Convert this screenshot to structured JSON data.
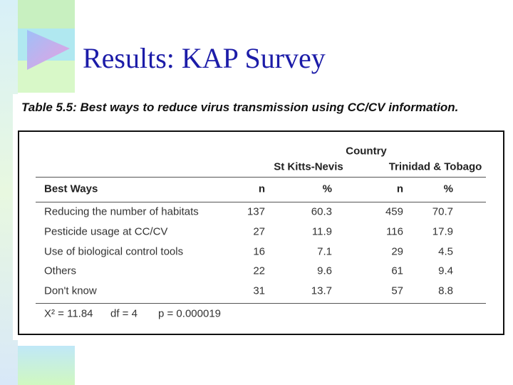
{
  "title": "Results: KAP Survey",
  "caption": "Table 5.5: Best ways to reduce virus transmission using CC/CV information.",
  "table": {
    "group_header": "Country",
    "groups": [
      "St Kitts-Nevis",
      "Trinidad & Tobago"
    ],
    "columns": [
      "Best Ways",
      "n",
      "%",
      "n",
      "%"
    ],
    "rows": [
      [
        "Reducing the number of habitats",
        137,
        60.3,
        459,
        70.7
      ],
      [
        "Pesticide usage at CC/CV",
        27,
        11.9,
        116,
        17.9
      ],
      [
        "Use of biological control tools",
        16,
        7.1,
        29,
        4.5
      ],
      [
        "Others",
        22,
        9.6,
        61,
        9.4
      ],
      [
        "Don't know",
        31,
        13.7,
        57,
        8.8
      ]
    ],
    "footer": [
      "X² = 11.84",
      "df = 4",
      "p = 0.000019"
    ]
  }
}
